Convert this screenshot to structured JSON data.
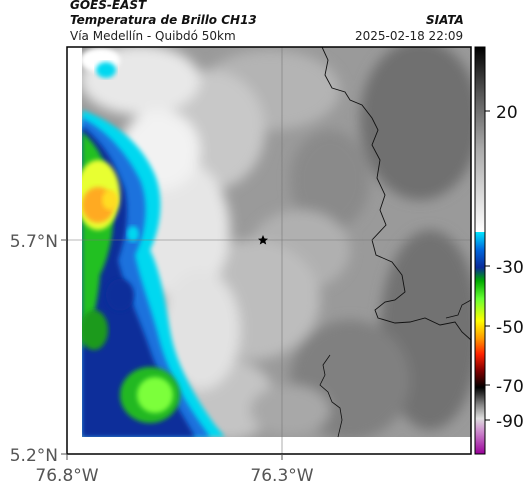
{
  "header": {
    "satellite": "GOES-EAST",
    "product": "Temperatura de Brillo CH13",
    "route": "Vía Medellín - Quibdó 50km",
    "agency": "SIATA",
    "datetime": "2025-02-18 22:09"
  },
  "map": {
    "lat_labels": [
      "5.7°N",
      "5.2°N"
    ],
    "lon_labels": [
      "76.8°W",
      "76.3°W"
    ],
    "marker": "star-icon"
  },
  "colorbar": {
    "labels": [
      "20",
      "-30",
      "-50",
      "-70",
      "-90"
    ]
  }
}
